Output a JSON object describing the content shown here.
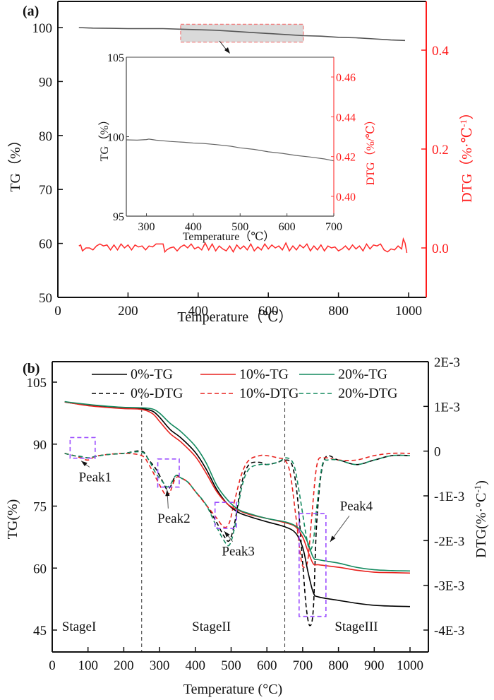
{
  "chart_data": [
    {
      "panel": "(a)",
      "type": "line",
      "xlabel": "Temperature（℃）",
      "ylabel": "TG（%）",
      "ylabel_right": "DTG（%·℃",
      "ylabel_right_sup": "-1",
      "ylabel_right_close": "）",
      "xlim": [
        0,
        1050
      ],
      "ylim": [
        50,
        105
      ],
      "ylim_right": [
        -0.1,
        0.475
      ],
      "xticks": [
        0,
        200,
        400,
        600,
        800,
        1000
      ],
      "yticks": [
        50,
        60,
        70,
        80,
        90,
        100
      ],
      "yticks_right": [
        0.0,
        0.2,
        0.4
      ],
      "ytick_labels_right": [
        "0.0",
        "0.2",
        "0.4"
      ],
      "series": [
        {
          "name": "TG",
          "axis": "left",
          "color": "#555555",
          "x": [
            60,
            100,
            150,
            200,
            250,
            300,
            350,
            400,
            450,
            500,
            550,
            600,
            650,
            700,
            750,
            800,
            850,
            900,
            950,
            990
          ],
          "y": [
            100.0,
            99.9,
            99.85,
            99.8,
            99.8,
            99.8,
            99.7,
            99.6,
            99.5,
            99.3,
            99.1,
            98.9,
            98.7,
            98.5,
            98.4,
            98.2,
            98.1,
            97.9,
            97.7,
            97.6
          ]
        },
        {
          "name": "DTG",
          "axis": "right",
          "color": "#ff2a2a",
          "x": [
            60,
            65,
            70,
            80,
            90,
            100,
            110,
            120,
            130,
            140,
            150,
            160,
            170,
            180,
            190,
            200,
            210,
            220,
            230,
            240,
            250,
            260,
            270,
            280,
            290,
            300,
            305,
            310,
            320,
            330,
            340,
            350,
            360,
            370,
            380,
            390,
            400,
            410,
            420,
            430,
            440,
            450,
            460,
            470,
            480,
            490,
            500,
            510,
            520,
            530,
            540,
            550,
            560,
            570,
            580,
            590,
            600,
            610,
            620,
            630,
            640,
            650,
            660,
            670,
            680,
            690,
            700,
            710,
            720,
            730,
            740,
            750,
            760,
            770,
            780,
            790,
            800,
            810,
            820,
            830,
            840,
            850,
            860,
            870,
            880,
            890,
            900,
            910,
            920,
            930,
            940,
            950,
            960,
            970,
            980,
            985,
            990,
            995
          ],
          "y": [
            0.004,
            0.006,
            -0.006,
            0.0,
            0.0,
            -0.004,
            0.004,
            0.008,
            0.004,
            0.006,
            -0.004,
            0.006,
            -0.004,
            0.008,
            0.0,
            0.006,
            -0.004,
            0.006,
            0.002,
            0.004,
            -0.004,
            0.004,
            0.002,
            0.008,
            0.008,
            0.008,
            -0.008,
            -0.004,
            0.0,
            0.002,
            -0.006,
            0.002,
            0.006,
            0.0,
            0.008,
            -0.002,
            0.002,
            -0.004,
            0.01,
            -0.004,
            0.008,
            -0.006,
            0.004,
            -0.002,
            -0.006,
            0.004,
            -0.008,
            0.006,
            -0.002,
            0.004,
            -0.004,
            0.008,
            -0.006,
            0.002,
            -0.004,
            0.008,
            -0.002,
            0.006,
            0.0,
            0.004,
            -0.004,
            0.01,
            -0.006,
            0.004,
            -0.004,
            0.006,
            0.0,
            0.008,
            -0.006,
            0.004,
            -0.004,
            0.006,
            -0.006,
            0.004,
            0.0,
            0.002,
            -0.006,
            -0.002,
            0.004,
            -0.004,
            0.006,
            -0.002,
            0.004,
            -0.006,
            0.008,
            -0.002,
            0.006,
            0.004,
            0.008,
            -0.004,
            -0.008,
            -0.002,
            -0.004,
            0.004,
            -0.002,
            0.018,
            0.01,
            -0.01
          ]
        }
      ],
      "highlight_box": {
        "x_range": [
          350,
          700
        ],
        "y_range": [
          97.3,
          100.6
        ]
      },
      "inset": {
        "type": "line",
        "xlabel": "Temperature（℃）",
        "ylabel": "TG（%）",
        "ylabel_right": "DTG（%/℃）",
        "xlim": [
          257,
          700
        ],
        "ylim": [
          95,
          105
        ],
        "ylim_right": [
          0.3905,
          0.4705
        ],
        "xticks": [
          300,
          400,
          500,
          600,
          700
        ],
        "yticks": [
          95,
          100,
          105
        ],
        "yticks_right": [
          0.4,
          0.42,
          0.44,
          0.46
        ],
        "ytick_labels_right": [
          "0.40",
          "0.42",
          "0.44",
          "0.46"
        ],
        "series": [
          {
            "name": "TG (zoom)",
            "color": "#666666",
            "x": [
              257,
              280,
              300,
              305,
              320,
              350,
              380,
              400,
              420,
              450,
              480,
              500,
              530,
              560,
              590,
              620,
              650,
              680,
              700
            ],
            "y": [
              99.8,
              99.78,
              99.82,
              99.85,
              99.78,
              99.7,
              99.65,
              99.6,
              99.58,
              99.5,
              99.4,
              99.3,
              99.2,
              99.05,
              98.95,
              98.82,
              98.72,
              98.6,
              98.48
            ]
          }
        ]
      }
    },
    {
      "panel": "(b)",
      "type": "line",
      "xlabel": "Temperature (°C)",
      "ylabel": "TG(%)",
      "ylabel_right": "DTG(%·°C",
      "ylabel_right_sup": "-1",
      "ylabel_right_close": ")",
      "xlim": [
        0,
        1050
      ],
      "ylim": [
        40,
        110
      ],
      "ylim_right": [
        -0.0045,
        0.002
      ],
      "xticks": [
        0,
        100,
        200,
        300,
        400,
        500,
        600,
        700,
        800,
        900,
        1000
      ],
      "yticks": [
        45,
        60,
        75,
        90,
        105
      ],
      "yticks_right": [
        -0.004,
        -0.003,
        -0.002,
        -0.001,
        0,
        0.001,
        0.002
      ],
      "ytick_labels_right": [
        "-4E-3",
        "-3E-3",
        "-2E-3",
        "-1E-3",
        "0",
        "1E-3",
        "2E-3"
      ],
      "legend": {
        "placement": "top",
        "entries": [
          {
            "label": "0%-TG",
            "color": "#000000",
            "dash": false
          },
          {
            "label": "10%-TG",
            "color": "#e8221e",
            "dash": false
          },
          {
            "label": "20%-TG",
            "color": "#138a5f",
            "dash": false
          },
          {
            "label": "0%-DTG",
            "color": "#000000",
            "dash": true
          },
          {
            "label": "10%-DTG",
            "color": "#e8221e",
            "dash": true
          },
          {
            "label": "20%-DTG",
            "color": "#138a5f",
            "dash": true
          }
        ]
      },
      "series": [
        {
          "name": "0%-TG",
          "axis": "left",
          "color": "#000000",
          "dash": false,
          "x": [
            35,
            50,
            100,
            150,
            200,
            250,
            280,
            300,
            330,
            360,
            400,
            430,
            460,
            490,
            520,
            550,
            600,
            650,
            680,
            700,
            715,
            730,
            745,
            800,
            850,
            900,
            950,
            1000
          ],
          "y": [
            100.2,
            100.0,
            99.4,
            99.0,
            98.8,
            98.6,
            98.0,
            96.5,
            93.5,
            91.5,
            88.0,
            84.0,
            79.0,
            75.5,
            73.5,
            72.5,
            71.2,
            70.0,
            68.5,
            65.0,
            59.0,
            54.0,
            53.0,
            52.2,
            51.5,
            51.0,
            50.8,
            50.7
          ]
        },
        {
          "name": "10%-TG",
          "axis": "left",
          "color": "#e8221e",
          "dash": false,
          "x": [
            35,
            50,
            100,
            150,
            200,
            250,
            280,
            300,
            330,
            360,
            400,
            430,
            460,
            490,
            520,
            550,
            600,
            650,
            680,
            700,
            715,
            730,
            745,
            800,
            850,
            900,
            950,
            1000
          ],
          "y": [
            100.2,
            100.0,
            99.3,
            98.9,
            98.6,
            98.4,
            97.4,
            95.5,
            92.5,
            90.5,
            87.0,
            83.0,
            78.5,
            75.5,
            74.0,
            73.0,
            72.0,
            71.0,
            70.0,
            67.5,
            64.0,
            61.0,
            60.8,
            60.2,
            59.5,
            59.0,
            58.9,
            58.8
          ]
        },
        {
          "name": "20%-TG",
          "axis": "left",
          "color": "#138a5f",
          "dash": false,
          "x": [
            35,
            50,
            100,
            150,
            200,
            250,
            280,
            300,
            330,
            360,
            400,
            430,
            460,
            490,
            520,
            550,
            600,
            650,
            680,
            700,
            715,
            730,
            745,
            800,
            850,
            900,
            950,
            1000
          ],
          "y": [
            100.3,
            100.1,
            99.6,
            99.2,
            98.9,
            98.8,
            98.5,
            97.5,
            95.0,
            93.0,
            89.5,
            85.5,
            80.0,
            76.5,
            74.2,
            73.2,
            72.0,
            71.2,
            70.2,
            68.5,
            66.0,
            62.5,
            62.0,
            61.2,
            60.2,
            59.6,
            59.4,
            59.3
          ]
        },
        {
          "name": "0%-DTG",
          "axis": "right",
          "color": "#000000",
          "dash": true,
          "x": [
            35,
            60,
            80,
            100,
            120,
            150,
            200,
            250,
            270,
            290,
            310,
            320,
            330,
            345,
            360,
            380,
            400,
            430,
            460,
            480,
            495,
            510,
            530,
            550,
            580,
            600,
            630,
            650,
            670,
            685,
            700,
            710,
            720,
            730,
            740,
            760,
            800,
            850,
            900,
            950,
            1000
          ],
          "y": [
            -5e-05,
            -0.0001,
            -0.00012,
            -0.00015,
            -0.00012,
            -8e-05,
            -5e-05,
            0.0,
            -0.0002,
            -0.0004,
            -0.0007,
            -0.00085,
            -0.0008,
            -0.00055,
            -0.0006,
            -0.0007,
            -0.0009,
            -0.0012,
            -0.0016,
            -0.0019,
            -0.002,
            -0.0016,
            -0.0007,
            -0.0003,
            -0.00025,
            -0.0003,
            -0.00025,
            -0.0002,
            -0.0003,
            -0.001,
            -0.0025,
            -0.0035,
            -0.0039,
            -0.0035,
            -0.0015,
            -0.0002,
            -0.0002,
            -0.0003,
            -0.0002,
            -0.0001,
            -0.0001
          ]
        },
        {
          "name": "10%-DTG",
          "axis": "right",
          "color": "#e8221e",
          "dash": true,
          "x": [
            35,
            60,
            80,
            100,
            120,
            150,
            200,
            250,
            270,
            290,
            310,
            320,
            330,
            345,
            360,
            380,
            400,
            430,
            460,
            480,
            495,
            510,
            530,
            550,
            580,
            600,
            630,
            650,
            665,
            680,
            695,
            705,
            715,
            725,
            740,
            760,
            800,
            850,
            900,
            950,
            1000
          ],
          "y": [
            -5e-05,
            -0.0001,
            -0.00015,
            -0.0002,
            -0.00012,
            -8e-05,
            -5e-05,
            -0.0001,
            -0.0003,
            -0.0006,
            -0.0009,
            -0.001,
            -0.0009,
            -0.0006,
            -0.0006,
            -0.0007,
            -0.0009,
            -0.0012,
            -0.0015,
            -0.0017,
            -0.0016,
            -0.0011,
            -0.0005,
            -0.0002,
            -0.0001,
            -0.0001,
            -0.00015,
            -0.0002,
            -0.0005,
            -0.0014,
            -0.0024,
            -0.0026,
            -0.0024,
            -0.0015,
            -0.0003,
            -0.00015,
            -0.0002,
            -0.0002,
            -0.0001,
            -5e-05,
            -5e-05
          ]
        },
        {
          "name": "20%-DTG",
          "axis": "right",
          "color": "#138a5f",
          "dash": true,
          "x": [
            35,
            60,
            80,
            100,
            120,
            150,
            200,
            250,
            270,
            290,
            310,
            320,
            330,
            345,
            360,
            380,
            400,
            430,
            460,
            480,
            495,
            510,
            530,
            550,
            580,
            600,
            630,
            655,
            675,
            690,
            710,
            720,
            730,
            740,
            755,
            770,
            800,
            850,
            900,
            950,
            1000
          ],
          "y": [
            -5e-05,
            -0.0001,
            -0.00012,
            -0.00015,
            -0.00012,
            -8e-05,
            -5e-05,
            -2e-05,
            -0.0002,
            -0.0005,
            -0.0007,
            -0.0008,
            -0.00075,
            -0.00055,
            -0.0006,
            -0.0007,
            -0.0009,
            -0.0012,
            -0.0017,
            -0.002,
            -0.0021,
            -0.0017,
            -0.0008,
            -0.0004,
            -0.0003,
            -0.0003,
            -0.00025,
            -0.00015,
            -0.0003,
            -0.0009,
            -0.0019,
            -0.0022,
            -0.002,
            -0.0012,
            -0.0003,
            -0.0002,
            -0.0002,
            -0.0003,
            -0.0002,
            -0.0001,
            -0.0001
          ]
        }
      ],
      "stage_dividers": [
        250,
        650
      ],
      "stage_labels": [
        {
          "text": "StageI",
          "x": 75
        },
        {
          "text": "StageII",
          "x": 445
        },
        {
          "text": "StageIII",
          "x": 850
        }
      ],
      "peaks": [
        {
          "label": "Peak1",
          "box_x": [
            50,
            120
          ],
          "box_y": [
            86.6,
            91.6
          ],
          "label_x": 120,
          "label_y": 81
        },
        {
          "label": "Peak2",
          "box_x": [
            295,
            355
          ],
          "box_y": [
            79.6,
            86.4
          ],
          "label_x": 340,
          "label_y": 71
        },
        {
          "label": "Peak3",
          "box_x": [
            455,
            515
          ],
          "box_y": [
            69.6,
            75.9
          ],
          "label_x": 520,
          "label_y": 63
        },
        {
          "label": "Peak4",
          "box_x": [
            690,
            765
          ],
          "box_y": [
            48.3,
            73.2
          ],
          "label_x": 850,
          "label_y": 74
        }
      ]
    }
  ],
  "panel_a_label": "(a)",
  "panel_b_label": "(b)"
}
